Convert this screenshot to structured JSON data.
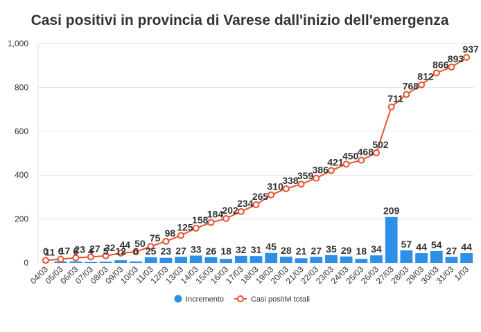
{
  "chart_data": {
    "type": "bar+line",
    "title": "Casi positivi in provincia di Varese dall'inizio dell'emergenza",
    "categories": [
      "04/03",
      "05/03",
      "06/03",
      "07/03",
      "08/03",
      "09/03",
      "10/03",
      "11/03",
      "12/03",
      "13/03",
      "14/03",
      "15/03",
      "16/03",
      "17/03",
      "18/03",
      "19/03",
      "20/03",
      "21/03",
      "22/03",
      "23/03",
      "24/03",
      "25/03",
      "26/03",
      "27/03",
      "28/03",
      "29/03",
      "30/03",
      "31/03",
      "1/03"
    ],
    "series": [
      {
        "name": "Incremento",
        "type": "bar",
        "color": "#2e8fe6",
        "values": [
          0,
          6,
          6,
          4,
          5,
          12,
          6,
          25,
          23,
          27,
          33,
          26,
          18,
          32,
          31,
          45,
          28,
          21,
          27,
          35,
          29,
          18,
          34,
          209,
          57,
          44,
          54,
          27,
          44
        ]
      },
      {
        "name": "Casi positivi totali",
        "type": "line",
        "color": "#e8502e",
        "values": [
          11,
          17,
          23,
          27,
          32,
          44,
          50,
          75,
          98,
          125,
          158,
          184,
          202,
          234,
          265,
          310,
          338,
          359,
          386,
          421,
          450,
          468,
          502,
          711,
          768,
          812,
          866,
          893,
          937
        ]
      }
    ],
    "yticks": [
      "0",
      "200",
      "400",
      "600",
      "800",
      "1,000"
    ],
    "ylim": [
      0,
      1000
    ],
    "grid": true,
    "legend": "bottom-center"
  }
}
